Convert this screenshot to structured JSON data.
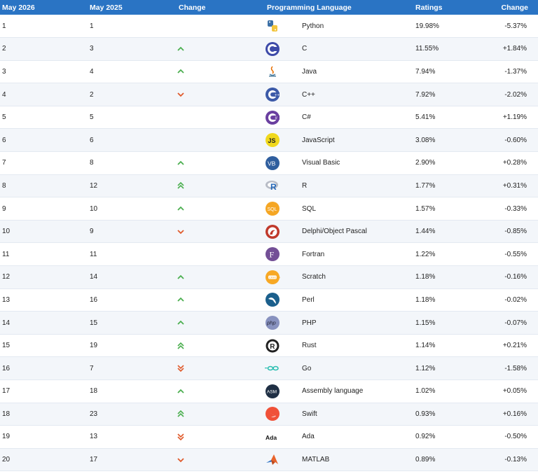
{
  "headers": {
    "current": "May 2026",
    "previous": "May 2025",
    "change": "Change",
    "language": "Programming Language",
    "ratings": "Ratings",
    "rating_change": "Change"
  },
  "colors": {
    "header_bg": "#2a74c4",
    "up": "#4caf50",
    "down": "#e05a2b"
  },
  "rows": [
    {
      "cur": "1",
      "prev": "1",
      "trend": "none",
      "icon": "python-icon",
      "lang": "Python",
      "rating": "19.98%",
      "delta": "-5.37%"
    },
    {
      "cur": "2",
      "prev": "3",
      "trend": "up",
      "icon": "c-icon",
      "lang": "C",
      "rating": "11.55%",
      "delta": "+1.84%"
    },
    {
      "cur": "3",
      "prev": "4",
      "trend": "up",
      "icon": "java-icon",
      "lang": "Java",
      "rating": "7.94%",
      "delta": "-1.37%"
    },
    {
      "cur": "4",
      "prev": "2",
      "trend": "down",
      "icon": "cpp-icon",
      "lang": "C++",
      "rating": "7.92%",
      "delta": "-2.02%"
    },
    {
      "cur": "5",
      "prev": "5",
      "trend": "none",
      "icon": "csharp-icon",
      "lang": "C#",
      "rating": "5.41%",
      "delta": "+1.19%"
    },
    {
      "cur": "6",
      "prev": "6",
      "trend": "none",
      "icon": "javascript-icon",
      "lang": "JavaScript",
      "rating": "3.08%",
      "delta": "-0.60%"
    },
    {
      "cur": "7",
      "prev": "8",
      "trend": "up",
      "icon": "visual-basic-icon",
      "lang": "Visual Basic",
      "rating": "2.90%",
      "delta": "+0.28%"
    },
    {
      "cur": "8",
      "prev": "12",
      "trend": "up2",
      "icon": "r-icon",
      "lang": "R",
      "rating": "1.77%",
      "delta": "+0.31%"
    },
    {
      "cur": "9",
      "prev": "10",
      "trend": "up",
      "icon": "sql-icon",
      "lang": "SQL",
      "rating": "1.57%",
      "delta": "-0.33%"
    },
    {
      "cur": "10",
      "prev": "9",
      "trend": "down",
      "icon": "delphi-icon",
      "lang": "Delphi/Object Pascal",
      "rating": "1.44%",
      "delta": "-0.85%"
    },
    {
      "cur": "11",
      "prev": "11",
      "trend": "none",
      "icon": "fortran-icon",
      "lang": "Fortran",
      "rating": "1.22%",
      "delta": "-0.55%"
    },
    {
      "cur": "12",
      "prev": "14",
      "trend": "up",
      "icon": "scratch-icon",
      "lang": "Scratch",
      "rating": "1.18%",
      "delta": "-0.16%"
    },
    {
      "cur": "13",
      "prev": "16",
      "trend": "up",
      "icon": "perl-icon",
      "lang": "Perl",
      "rating": "1.18%",
      "delta": "-0.02%"
    },
    {
      "cur": "14",
      "prev": "15",
      "trend": "up",
      "icon": "php-icon",
      "lang": "PHP",
      "rating": "1.15%",
      "delta": "-0.07%"
    },
    {
      "cur": "15",
      "prev": "19",
      "trend": "up2",
      "icon": "rust-icon",
      "lang": "Rust",
      "rating": "1.14%",
      "delta": "+0.21%"
    },
    {
      "cur": "16",
      "prev": "7",
      "trend": "down2",
      "icon": "go-icon",
      "lang": "Go",
      "rating": "1.12%",
      "delta": "-1.58%"
    },
    {
      "cur": "17",
      "prev": "18",
      "trend": "up",
      "icon": "assembly-icon",
      "lang": "Assembly language",
      "rating": "1.02%",
      "delta": "+0.05%"
    },
    {
      "cur": "18",
      "prev": "23",
      "trend": "up2",
      "icon": "swift-icon",
      "lang": "Swift",
      "rating": "0.93%",
      "delta": "+0.16%"
    },
    {
      "cur": "19",
      "prev": "13",
      "trend": "down2",
      "icon": "ada-icon",
      "lang": "Ada",
      "rating": "0.92%",
      "delta": "-0.50%"
    },
    {
      "cur": "20",
      "prev": "17",
      "trend": "down",
      "icon": "matlab-icon",
      "lang": "MATLAB",
      "rating": "0.89%",
      "delta": "-0.13%"
    }
  ]
}
